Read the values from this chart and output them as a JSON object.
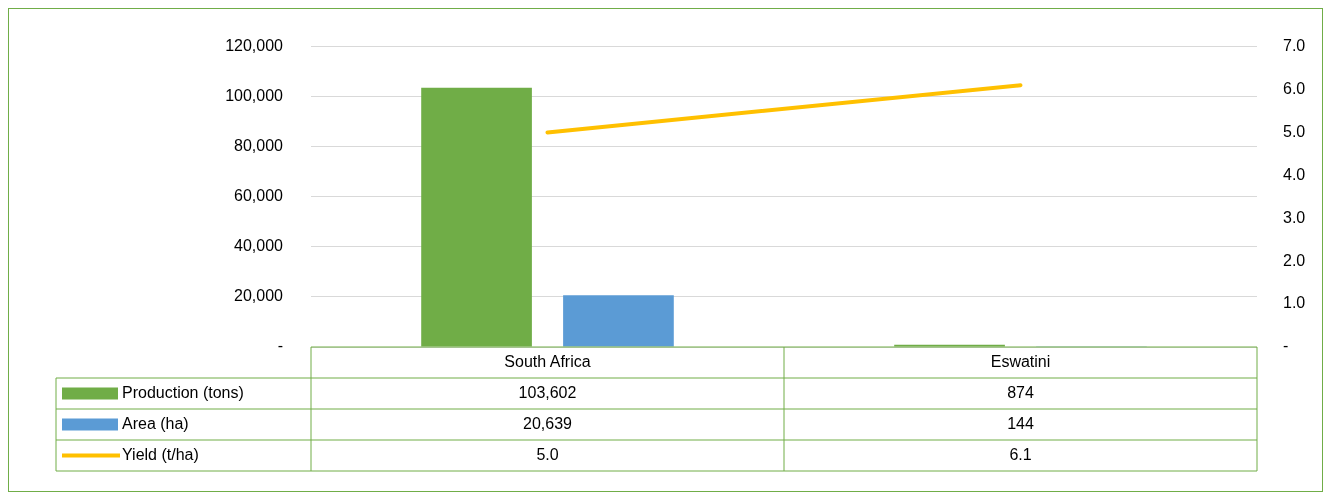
{
  "chart_data": {
    "type": "bar",
    "categories": [
      "South Africa",
      "Eswatini"
    ],
    "series": [
      {
        "name": "Production (tons)",
        "color": "#70ad47",
        "values": [
          103602,
          874
        ],
        "value_labels": [
          "103,602",
          "874"
        ]
      },
      {
        "name": "Area (ha)",
        "color": "#5b9bd5",
        "values": [
          20639,
          144
        ],
        "value_labels": [
          "20,639",
          "144"
        ]
      },
      {
        "name": "Yield (t/ha)",
        "type": "line",
        "axis": "y2",
        "color": "#ffc000",
        "values": [
          5.0,
          6.1
        ],
        "value_labels": [
          "5.0",
          "6.1"
        ]
      }
    ],
    "ylim": [
      0,
      120000
    ],
    "yticks": [
      {
        "value": 0,
        "label": "-"
      },
      {
        "value": 20000,
        "label": "20,000"
      },
      {
        "value": 40000,
        "label": "40,000"
      },
      {
        "value": 60000,
        "label": "60,000"
      },
      {
        "value": 80000,
        "label": "80,000"
      },
      {
        "value": 100000,
        "label": "100,000"
      },
      {
        "value": 120000,
        "label": "120,000"
      }
    ],
    "y2lim": [
      0,
      7
    ],
    "y2ticks": [
      {
        "value": 0,
        "label": "-"
      },
      {
        "value": 1,
        "label": "1.0"
      },
      {
        "value": 2,
        "label": "2.0"
      },
      {
        "value": 3,
        "label": "3.0"
      },
      {
        "value": 4,
        "label": "4.0"
      },
      {
        "value": 5,
        "label": "5.0"
      },
      {
        "value": 6,
        "label": "6.0"
      },
      {
        "value": 7,
        "label": "7.0"
      }
    ],
    "grid": "y",
    "legend": "bottom",
    "marker": "none",
    "line_style": "solid"
  }
}
